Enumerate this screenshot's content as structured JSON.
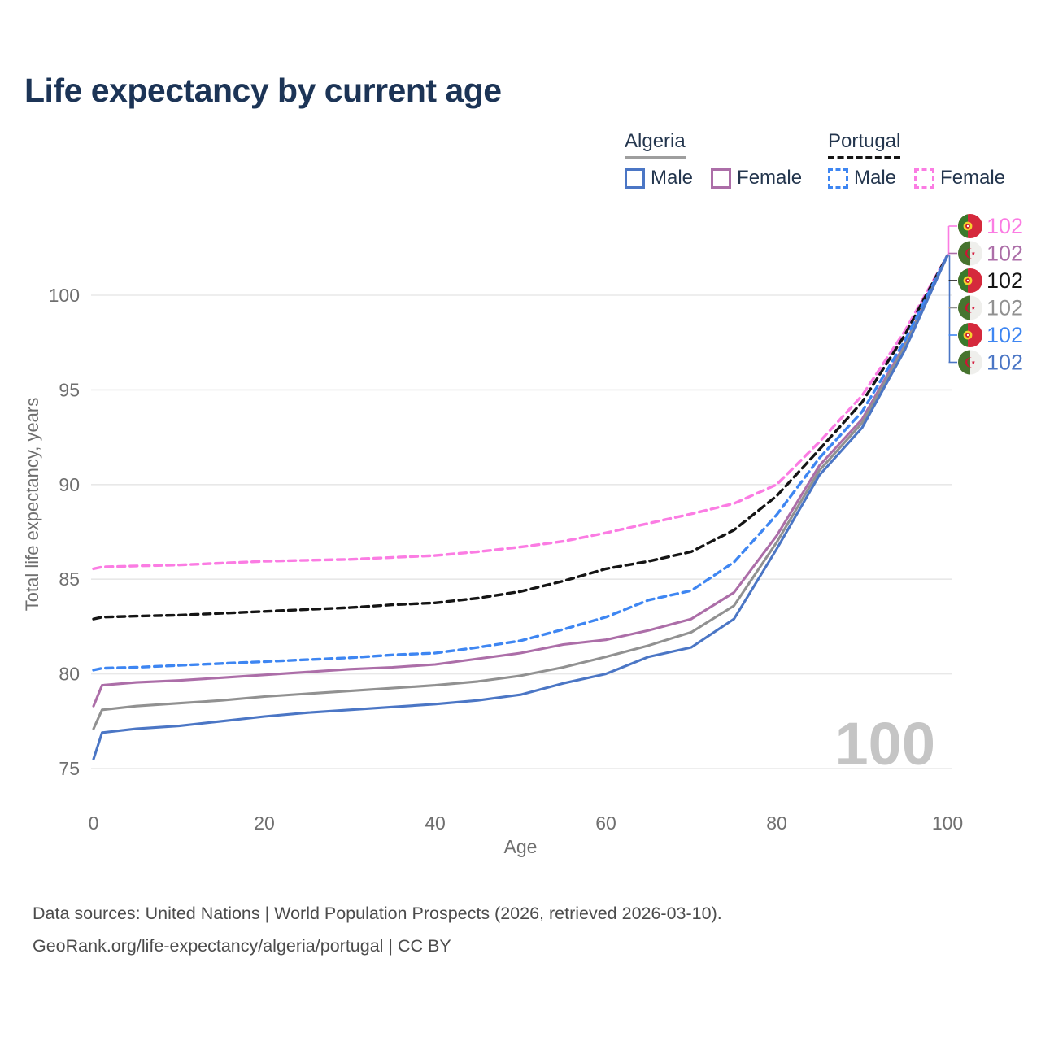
{
  "page": {
    "title": "Life expectancy by current age"
  },
  "legend": {
    "groups": [
      {
        "country": "Algeria",
        "underline_style": "solid",
        "underline_color": "#9e9e9e",
        "items": [
          {
            "label": "Male",
            "color": "#4b76c5",
            "dash": false
          },
          {
            "label": "Female",
            "color": "#ac6ea8",
            "dash": false
          }
        ]
      },
      {
        "country": "Portugal",
        "underline_style": "dashed",
        "underline_color": "#151515",
        "items": [
          {
            "label": "Male",
            "color": "#3e86f2",
            "dash": true
          },
          {
            "label": "Female",
            "color": "#fb7ce3",
            "dash": true
          }
        ]
      }
    ]
  },
  "chart_data": {
    "type": "line",
    "title": "Life expectancy by current age",
    "xlabel": "Age",
    "ylabel": "Total life expectancy, years",
    "x_ticks": [
      0,
      20,
      40,
      60,
      80,
      100
    ],
    "y_ticks": [
      75,
      80,
      85,
      90,
      95,
      100
    ],
    "xlim": [
      0,
      100
    ],
    "ylim": [
      75,
      100
    ],
    "grid": "horizontal-only",
    "legend_position": "top-right",
    "hovered_age_watermark": "100",
    "ages": [
      0,
      1,
      5,
      10,
      15,
      20,
      25,
      30,
      35,
      40,
      45,
      50,
      55,
      60,
      65,
      70,
      75,
      80,
      85,
      90,
      95,
      100
    ],
    "series": [
      {
        "name": "Portugal Female",
        "country": "Portugal",
        "sex": "Female",
        "flag": "portugal",
        "color": "#fb7ce3",
        "dash": true,
        "end_label": "102",
        "values": [
          85.55,
          85.65,
          85.7,
          85.75,
          85.85,
          85.95,
          86.0,
          86.05,
          86.15,
          86.25,
          86.45,
          86.7,
          87.0,
          87.45,
          87.95,
          88.45,
          89.0,
          90.0,
          92.25,
          94.7,
          98.1,
          102.1
        ]
      },
      {
        "name": "Algeria Female",
        "country": "Algeria",
        "sex": "Female",
        "flag": "algeria",
        "color": "#ac6ea8",
        "dash": false,
        "end_label": "102",
        "values": [
          78.3,
          79.4,
          79.55,
          79.65,
          79.8,
          79.95,
          80.1,
          80.25,
          80.35,
          80.5,
          80.8,
          81.1,
          81.55,
          81.8,
          82.3,
          82.9,
          84.3,
          87.3,
          91.0,
          93.45,
          97.4,
          102.1
        ]
      },
      {
        "name": "Portugal",
        "country": "Portugal",
        "sex": "Both",
        "flag": "portugal",
        "color": "#151515",
        "dash": true,
        "end_label": "102",
        "values": [
          82.9,
          83.0,
          83.05,
          83.1,
          83.2,
          83.3,
          83.4,
          83.5,
          83.65,
          83.75,
          84.0,
          84.35,
          84.9,
          85.55,
          85.95,
          86.45,
          87.6,
          89.4,
          91.85,
          94.35,
          97.9,
          102.1
        ]
      },
      {
        "name": "Algeria",
        "country": "Algeria",
        "sex": "Both",
        "flag": "algeria",
        "color": "#919191",
        "dash": false,
        "end_label": "102",
        "values": [
          77.1,
          78.1,
          78.3,
          78.45,
          78.6,
          78.8,
          78.95,
          79.1,
          79.25,
          79.4,
          79.6,
          79.9,
          80.35,
          80.9,
          81.5,
          82.2,
          83.6,
          86.95,
          90.75,
          93.25,
          97.3,
          102.1
        ]
      },
      {
        "name": "Portugal Male",
        "country": "Portugal",
        "sex": "Male",
        "flag": "portugal",
        "color": "#3e86f2",
        "dash": true,
        "end_label": "102",
        "values": [
          80.2,
          80.3,
          80.35,
          80.45,
          80.55,
          80.65,
          80.75,
          80.85,
          81.0,
          81.1,
          81.4,
          81.75,
          82.35,
          83.0,
          83.9,
          84.4,
          85.9,
          88.4,
          91.4,
          93.85,
          97.6,
          102.1
        ]
      },
      {
        "name": "Algeria Male",
        "country": "Algeria",
        "sex": "Male",
        "flag": "algeria",
        "color": "#4b76c5",
        "dash": false,
        "end_label": "102",
        "values": [
          75.5,
          76.9,
          77.1,
          77.25,
          77.5,
          77.75,
          77.95,
          78.1,
          78.25,
          78.4,
          78.6,
          78.9,
          79.5,
          80.0,
          80.9,
          81.4,
          82.9,
          86.6,
          90.5,
          93.0,
          97.1,
          102.1
        ]
      }
    ]
  },
  "footer": {
    "line1": "Data sources: United Nations | World Population Prospects (2026, retrieved 2026-03-10).",
    "line2": "GeoRank.org/life-expectancy/algeria/portugal | CC BY"
  }
}
